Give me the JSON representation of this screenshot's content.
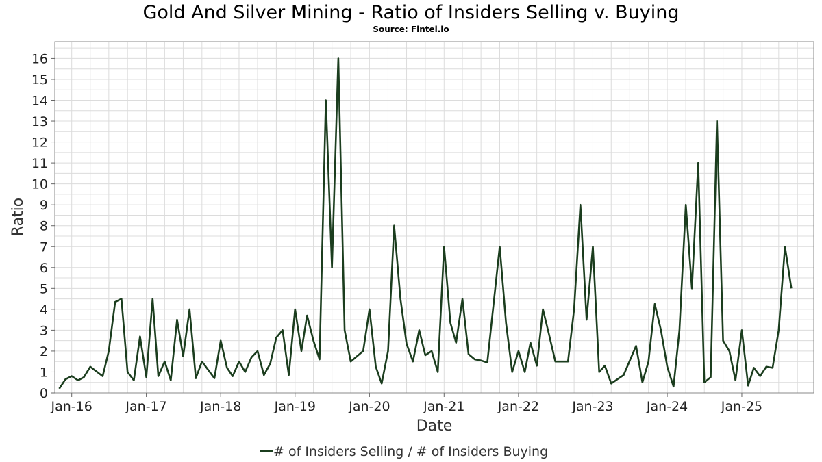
{
  "chart_data": {
    "type": "line",
    "title": "Gold And Silver Mining - Ratio of Insiders Selling v. Buying",
    "subtitle": "Source: Fintel.io",
    "xlabel": "Date",
    "ylabel": "Ratio",
    "ylim": [
      0,
      16.8
    ],
    "y_ticks": [
      "0",
      "1",
      "2",
      "3",
      "4",
      "5",
      "6",
      "7",
      "8",
      "9",
      "10",
      "11",
      "12",
      "13",
      "14",
      "15",
      "16"
    ],
    "x_ticks": [
      {
        "label": "Jan-16",
        "date": "2016-01-01"
      },
      {
        "label": "Jan-17",
        "date": "2017-01-01"
      },
      {
        "label": "Jan-18",
        "date": "2018-01-01"
      },
      {
        "label": "Jan-19",
        "date": "2019-01-01"
      },
      {
        "label": "Jan-20",
        "date": "2020-01-01"
      },
      {
        "label": "Jan-21",
        "date": "2021-01-01"
      },
      {
        "label": "Jan-22",
        "date": "2022-01-01"
      },
      {
        "label": "Jan-23",
        "date": "2023-01-01"
      },
      {
        "label": "Jan-24",
        "date": "2024-01-01"
      },
      {
        "label": "Jan-25",
        "date": "2025-01-01"
      }
    ],
    "xlim": [
      "2015-10-10",
      "2025-12-20"
    ],
    "grid": true,
    "legend_position": "bottom-center",
    "line_color": "#1b3d1e",
    "series": [
      {
        "name": "# of Insiders Selling / # of Insiders Buying",
        "points": [
          [
            "2015-11-01",
            0.2
          ],
          [
            "2015-12-01",
            0.65
          ],
          [
            "2016-01-01",
            0.8
          ],
          [
            "2016-02-01",
            0.6
          ],
          [
            "2016-03-01",
            0.75
          ],
          [
            "2016-04-01",
            1.25
          ],
          [
            "2016-06-01",
            0.8
          ],
          [
            "2016-07-01",
            2.0
          ],
          [
            "2016-08-01",
            4.35
          ],
          [
            "2016-09-01",
            4.5
          ],
          [
            "2016-10-01",
            1.0
          ],
          [
            "2016-11-01",
            0.6
          ],
          [
            "2016-12-01",
            2.7
          ],
          [
            "2017-01-01",
            0.75
          ],
          [
            "2017-02-01",
            4.5
          ],
          [
            "2017-03-01",
            0.8
          ],
          [
            "2017-04-01",
            1.5
          ],
          [
            "2017-05-01",
            0.6
          ],
          [
            "2017-06-01",
            3.5
          ],
          [
            "2017-07-01",
            1.75
          ],
          [
            "2017-08-01",
            4.0
          ],
          [
            "2017-09-01",
            0.7
          ],
          [
            "2017-10-01",
            1.5
          ],
          [
            "2017-12-01",
            0.7
          ],
          [
            "2018-01-01",
            2.5
          ],
          [
            "2018-02-01",
            1.2
          ],
          [
            "2018-03-01",
            0.8
          ],
          [
            "2018-04-01",
            1.5
          ],
          [
            "2018-05-01",
            1.0
          ],
          [
            "2018-06-01",
            1.7
          ],
          [
            "2018-07-01",
            2.0
          ],
          [
            "2018-08-01",
            0.85
          ],
          [
            "2018-09-01",
            1.4
          ],
          [
            "2018-10-01",
            2.65
          ],
          [
            "2018-11-01",
            3.0
          ],
          [
            "2018-12-01",
            0.85
          ],
          [
            "2019-01-01",
            4.0
          ],
          [
            "2019-02-01",
            2.0
          ],
          [
            "2019-03-01",
            3.7
          ],
          [
            "2019-04-01",
            2.5
          ],
          [
            "2019-05-01",
            1.6
          ],
          [
            "2019-06-01",
            14.0
          ],
          [
            "2019-07-01",
            6.0
          ],
          [
            "2019-08-01",
            16.0
          ],
          [
            "2019-09-01",
            3.0
          ],
          [
            "2019-10-01",
            1.5
          ],
          [
            "2019-12-01",
            2.0
          ],
          [
            "2020-01-01",
            4.0
          ],
          [
            "2020-02-01",
            1.25
          ],
          [
            "2020-03-01",
            0.45
          ],
          [
            "2020-04-01",
            2.0
          ],
          [
            "2020-05-01",
            8.0
          ],
          [
            "2020-06-01",
            4.5
          ],
          [
            "2020-07-01",
            2.35
          ],
          [
            "2020-08-01",
            1.5
          ],
          [
            "2020-09-01",
            3.0
          ],
          [
            "2020-10-01",
            1.8
          ],
          [
            "2020-11-01",
            2.0
          ],
          [
            "2020-12-01",
            1.0
          ],
          [
            "2021-01-01",
            7.0
          ],
          [
            "2021-02-01",
            3.35
          ],
          [
            "2021-03-01",
            2.4
          ],
          [
            "2021-04-01",
            4.5
          ],
          [
            "2021-05-01",
            1.85
          ],
          [
            "2021-06-01",
            1.6
          ],
          [
            "2021-07-01",
            1.55
          ],
          [
            "2021-08-01",
            1.45
          ],
          [
            "2021-10-01",
            7.0
          ],
          [
            "2021-11-01",
            3.35
          ],
          [
            "2021-12-01",
            1.0
          ],
          [
            "2022-01-01",
            2.0
          ],
          [
            "2022-02-01",
            1.0
          ],
          [
            "2022-03-01",
            2.4
          ],
          [
            "2022-04-01",
            1.3
          ],
          [
            "2022-05-01",
            4.0
          ],
          [
            "2022-06-01",
            2.75
          ],
          [
            "2022-07-01",
            1.5
          ],
          [
            "2022-09-01",
            1.5
          ],
          [
            "2022-10-01",
            4.0
          ],
          [
            "2022-11-01",
            9.0
          ],
          [
            "2022-12-01",
            3.5
          ],
          [
            "2023-01-01",
            7.0
          ],
          [
            "2023-02-01",
            1.0
          ],
          [
            "2023-03-01",
            1.3
          ],
          [
            "2023-04-01",
            0.45
          ],
          [
            "2023-05-01",
            0.65
          ],
          [
            "2023-06-01",
            0.85
          ],
          [
            "2023-08-01",
            2.25
          ],
          [
            "2023-09-01",
            0.5
          ],
          [
            "2023-10-01",
            1.5
          ],
          [
            "2023-11-01",
            4.25
          ],
          [
            "2023-12-01",
            3.0
          ],
          [
            "2024-01-01",
            1.25
          ],
          [
            "2024-02-01",
            0.3
          ],
          [
            "2024-03-01",
            3.0
          ],
          [
            "2024-04-01",
            9.0
          ],
          [
            "2024-05-01",
            5.0
          ],
          [
            "2024-06-01",
            11.0
          ],
          [
            "2024-07-01",
            0.5
          ],
          [
            "2024-08-01",
            0.75
          ],
          [
            "2024-09-01",
            13.0
          ],
          [
            "2024-10-01",
            2.5
          ],
          [
            "2024-11-01",
            2.0
          ],
          [
            "2024-12-01",
            0.6
          ],
          [
            "2025-01-01",
            3.0
          ],
          [
            "2025-02-01",
            0.35
          ],
          [
            "2025-03-01",
            1.2
          ],
          [
            "2025-04-01",
            0.8
          ],
          [
            "2025-05-01",
            1.25
          ],
          [
            "2025-06-01",
            1.2
          ],
          [
            "2025-07-01",
            3.0
          ],
          [
            "2025-08-01",
            7.0
          ],
          [
            "2025-09-01",
            5.0
          ]
        ]
      }
    ]
  }
}
